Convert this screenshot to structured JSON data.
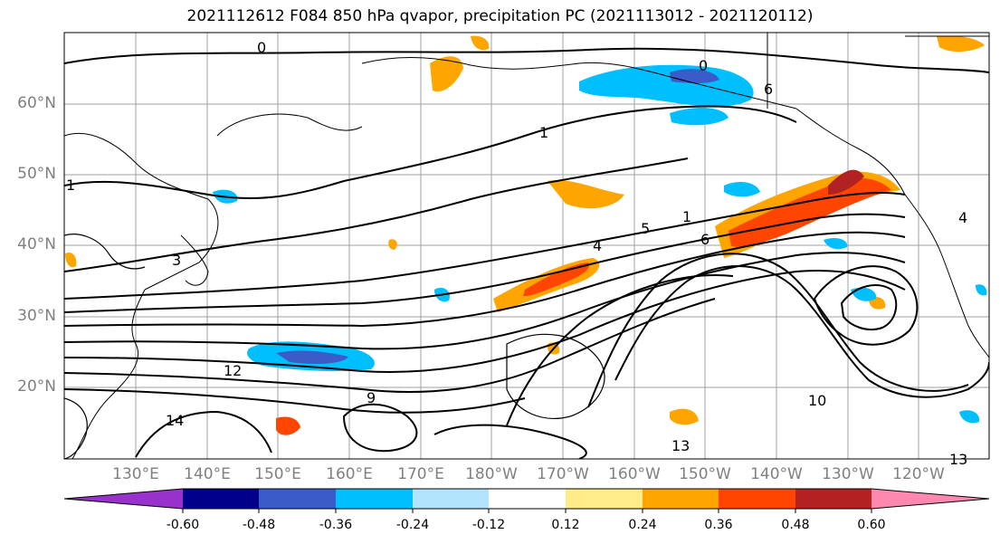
{
  "title": "2021112612 F084 850 hPa qvapor, precipitation PC (2021113012 - 2021120112)",
  "lat_labels": [
    "60°N",
    "50°N",
    "40°N",
    "30°N",
    "20°N"
  ],
  "lon_labels": [
    "130°E",
    "140°E",
    "150°E",
    "160°E",
    "170°E",
    "180°W",
    "170°W",
    "160°W",
    "150°W",
    "140°W",
    "130°W",
    "120°W"
  ],
  "colorbar": {
    "colors": [
      "#9932cc",
      "#00008b",
      "#3a5bc8",
      "#00bfff",
      "#b2e3fd",
      "#ffffff",
      "#ffeb88",
      "#ffa500",
      "#ff4500",
      "#b22222",
      "#ff88b0"
    ],
    "labels": [
      "-0.60",
      "-0.48",
      "-0.36",
      "-0.24",
      "-0.12",
      "0.12",
      "0.24",
      "0.36",
      "0.48",
      "0.60"
    ]
  },
  "contour_labels": [
    "0",
    "0",
    "1",
    "1",
    "3",
    "4",
    "5",
    "6",
    "9",
    "12",
    "10",
    "13",
    "13",
    "14",
    "6",
    "4",
    "1"
  ]
}
